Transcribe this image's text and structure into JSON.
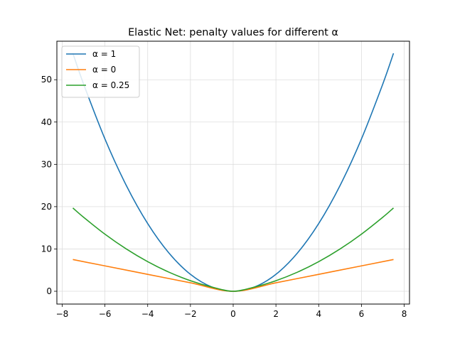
{
  "chart_data": {
    "type": "line",
    "title": "Elastic Net: penalty values for different α",
    "xlabel": "",
    "ylabel": "",
    "xlim": [
      -7.5,
      7.5
    ],
    "ylim": [
      0,
      56.25
    ],
    "x_ticks": [
      -8,
      -6,
      -4,
      -2,
      0,
      2,
      4,
      6,
      8
    ],
    "y_ticks": [
      0,
      10,
      20,
      30,
      40,
      50
    ],
    "grid": true,
    "legend": "top-left",
    "series": [
      {
        "name": "α = 1",
        "color": "#1f77b4",
        "x": [
          -7.5,
          -7,
          -6,
          -5,
          -4,
          -3,
          -2,
          -1,
          0,
          1,
          2,
          3,
          4,
          5,
          6,
          7,
          7.5
        ],
        "y": [
          56.25,
          49,
          36,
          25,
          16,
          9,
          4,
          1,
          0,
          1,
          4,
          9,
          16,
          25,
          36,
          49,
          56.25
        ]
      },
      {
        "name": "α = 0",
        "color": "#ff7f0e",
        "x": [
          -7.5,
          -6,
          -4,
          -2,
          0,
          2,
          4,
          6,
          7.5
        ],
        "y": [
          7.5,
          6,
          4,
          2,
          0,
          2,
          4,
          6,
          7.5
        ]
      },
      {
        "name": "α = 0.25",
        "color": "#2ca02c",
        "x": [
          -7.5,
          -7,
          -6,
          -5,
          -4,
          -3,
          -2,
          -1,
          0,
          1,
          2,
          3,
          4,
          5,
          6,
          7,
          7.5
        ],
        "y": [
          19.69,
          17.5,
          13.5,
          10,
          7,
          4.5,
          2.5,
          1,
          0,
          1,
          2.5,
          4.5,
          7,
          10,
          13.5,
          17.5,
          19.69
        ]
      }
    ]
  }
}
